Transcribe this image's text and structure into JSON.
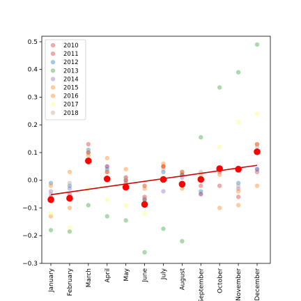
{
  "chart_data": {
    "type": "scatter",
    "title": "",
    "xlabel": "",
    "ylabel": "",
    "categories": [
      "January",
      "February",
      "March",
      "April",
      "May",
      "June",
      "July",
      "August",
      "September",
      "October",
      "November",
      "December"
    ],
    "ylim": [
      -0.3,
      0.52
    ],
    "yticks": [
      -0.3,
      -0.2,
      -0.1,
      0.0,
      0.1,
      0.2,
      0.3,
      0.4,
      0.5
    ],
    "ytick_labels": [
      "−0.3",
      "−0.2",
      "−0.1",
      "0.0",
      "0.1",
      "0.2",
      "0.3",
      "0.4",
      "0.5"
    ],
    "grid": false,
    "legend_position": "top-left",
    "series": [
      {
        "name": "2010",
        "color": "#d62728",
        "values": [
          -0.07,
          -0.06,
          0.13,
          0.05,
          0.01,
          -0.07,
          0.05,
          0.02,
          -0.05,
          0.04,
          0.04,
          0.13
        ]
      },
      {
        "name": "2011",
        "color": "#d62728",
        "values": [
          -0.06,
          -0.05,
          0.1,
          0.03,
          -0.01,
          -0.06,
          0.05,
          0.03,
          -0.02,
          -0.02,
          -0.06,
          0.03
        ]
      },
      {
        "name": "2012",
        "color": "#1f77b4",
        "values": [
          -0.01,
          -0.02,
          0.11,
          0.04,
          0.0,
          -0.07,
          0.03,
          0.02,
          -0.04,
          0.04,
          -0.01,
          0.04
        ]
      },
      {
        "name": "2013",
        "color": "#2ca02c",
        "values": [
          -0.18,
          -0.185,
          -0.09,
          -0.13,
          -0.145,
          -0.26,
          -0.175,
          -0.22,
          0.155,
          0.335,
          0.39,
          0.49
        ]
      },
      {
        "name": "2014",
        "color": "#9467bd",
        "values": [
          -0.04,
          -0.03,
          0.1,
          0.05,
          0.0,
          -0.02,
          -0.04,
          0.01,
          -0.05,
          0.03,
          -0.03,
          0.04
        ]
      },
      {
        "name": "2015",
        "color": "#ff7f0e",
        "values": [
          -0.02,
          0.03,
          0.09,
          0.08,
          0.04,
          -0.03,
          0.06,
          0.03,
          0.02,
          -0.1,
          -0.09,
          0.13
        ]
      },
      {
        "name": "2016",
        "color": "#ff7f0e",
        "values": [
          -0.13,
          -0.1,
          0.1,
          0.03,
          0.0,
          -0.02,
          0.05,
          -0.03,
          0.0,
          0.02,
          -0.04,
          -0.02
        ]
      },
      {
        "name": "2017",
        "color": "#ffff66",
        "values": [
          -0.12,
          -0.17,
          -0.03,
          -0.07,
          -0.09,
          -0.12,
          0.01,
          -0.02,
          0.0,
          0.12,
          0.21,
          0.24
        ]
      },
      {
        "name": "2018",
        "color": "#c49c94",
        "values": [
          -0.05,
          -0.01,
          0.1,
          0.03,
          0.01,
          -0.065,
          0.04,
          -0.01,
          0.03,
          0.03,
          -0.02,
          0.12
        ]
      }
    ],
    "means": {
      "color": "#ff0000",
      "values": [
        -0.07,
        -0.065,
        0.07,
        0.005,
        -0.025,
        -0.087,
        0.003,
        -0.014,
        0.003,
        0.042,
        0.04,
        0.103
      ]
    },
    "trendline": {
      "color": "#cc0000",
      "start": -0.052,
      "end": 0.054
    }
  }
}
